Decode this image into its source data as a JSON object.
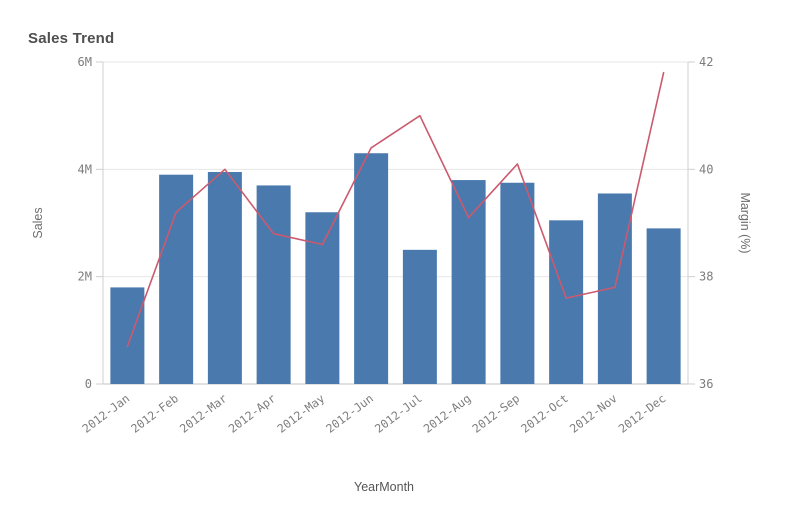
{
  "chart_data": {
    "type": "combo",
    "title": "Sales Trend",
    "xlabel": "YearMonth",
    "ylabel_left": "Sales",
    "ylabel_right": "Margin (%)",
    "categories": [
      "2012-Jan",
      "2012-Feb",
      "2012-Mar",
      "2012-Apr",
      "2012-May",
      "2012-Jun",
      "2012-Jul",
      "2012-Aug",
      "2012-Sep",
      "2012-Oct",
      "2012-Nov",
      "2012-Dec"
    ],
    "series": [
      {
        "name": "Sales",
        "type": "bar",
        "axis": "left",
        "unit": "M",
        "color": "#4a79ad",
        "values": [
          1.8,
          3.9,
          3.95,
          3.7,
          3.2,
          4.3,
          2.5,
          3.8,
          3.75,
          3.05,
          3.55,
          2.9
        ]
      },
      {
        "name": "Margin (%)",
        "type": "line",
        "axis": "right",
        "unit": "%",
        "color": "#cb5a6e",
        "values": [
          36.7,
          39.2,
          40.0,
          38.8,
          38.6,
          40.4,
          41.0,
          39.1,
          40.1,
          37.6,
          37.8,
          41.8
        ]
      }
    ],
    "axes": {
      "left": {
        "min": 0,
        "max": 6,
        "tick_values": [
          0,
          2,
          4,
          6
        ],
        "tick_labels": [
          "0",
          "2M",
          "4M",
          "6M"
        ]
      },
      "right": {
        "min": 36,
        "max": 42,
        "tick_values": [
          36,
          38,
          40,
          42
        ],
        "tick_labels": [
          "36",
          "38",
          "40",
          "42"
        ]
      }
    },
    "grid": true,
    "legend": false
  },
  "colors": {
    "background": "#ffffff",
    "title_text": "#4f4f4f",
    "axis_title_text": "#6e6e6e",
    "tick_text": "#7d7d7d",
    "gridline": "#e7e7e7",
    "axis_line": "#cfcfcf",
    "bar": "#4a79ad",
    "line": "#cb5a6e"
  }
}
